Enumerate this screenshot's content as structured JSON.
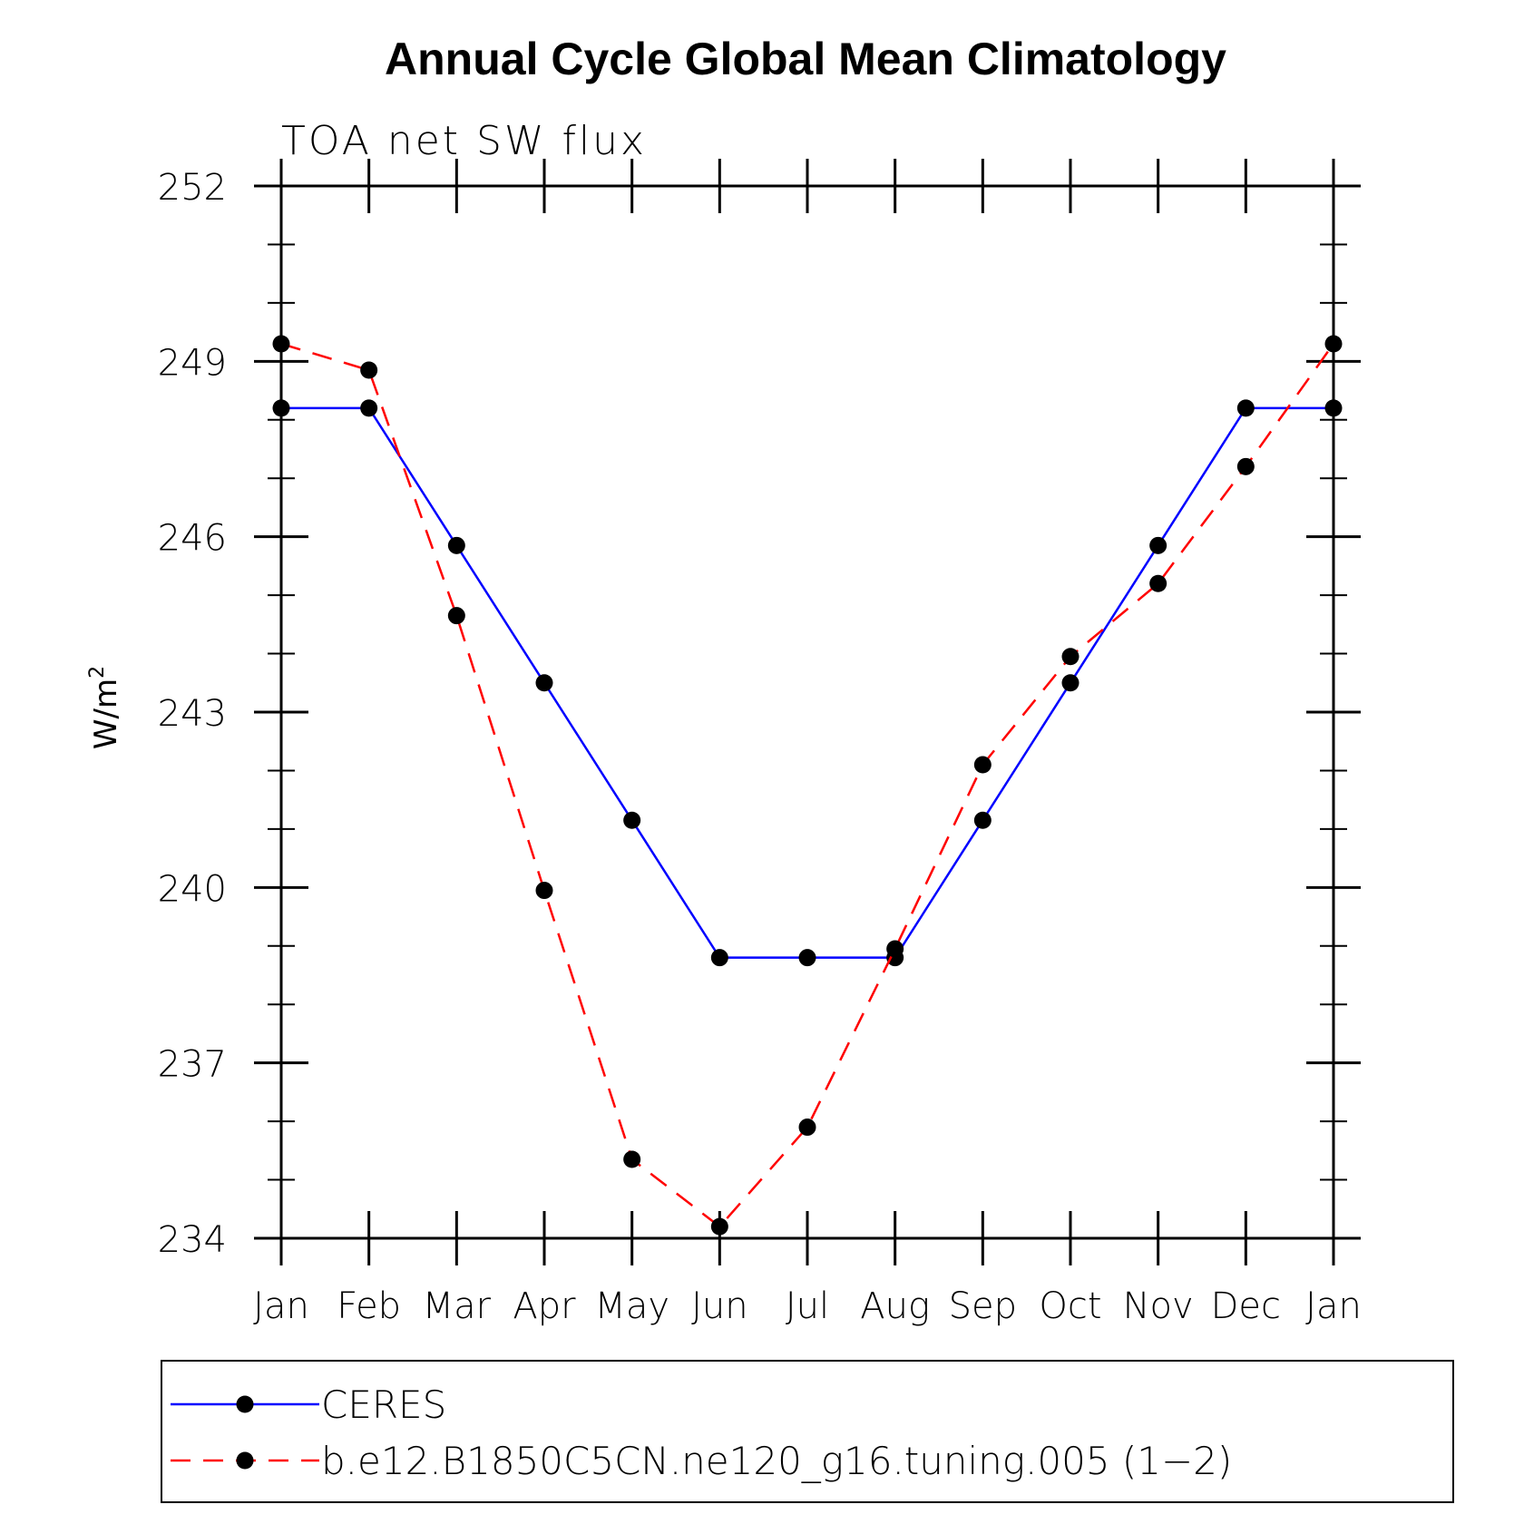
{
  "chart_data": {
    "type": "line",
    "title": "Annual Cycle Global Mean Climatology",
    "subtitle": "TOA net SW flux",
    "xlabel": "",
    "ylabel": "W/m",
    "ylabel_superscript": "2",
    "categories": [
      "Jan",
      "Feb",
      "Mar",
      "Apr",
      "May",
      "Jun",
      "Jul",
      "Aug",
      "Sep",
      "Oct",
      "Nov",
      "Dec",
      "Jan"
    ],
    "ylim": [
      234,
      252
    ],
    "yticks": [
      234,
      237,
      240,
      243,
      246,
      249,
      252
    ],
    "y_minor_step": 1,
    "grid": false,
    "legend_position": "bottom",
    "series": [
      {
        "name": "CERES",
        "color": "#0000ff",
        "dash": "solid",
        "marker": "filled-circle",
        "values": [
          248.2,
          248.2,
          245.85,
          243.5,
          241.15,
          238.8,
          238.8,
          238.8,
          241.15,
          243.5,
          245.85,
          248.2,
          248.2
        ]
      },
      {
        "name": "b.e12.B1850C5CN.ne120_g16.tuning.005 (1−2)",
        "color": "#ff0000",
        "dash": "dashed",
        "marker": "filled-circle",
        "values": [
          249.3,
          248.85,
          244.65,
          239.95,
          235.35,
          234.2,
          235.9,
          238.95,
          242.1,
          243.95,
          245.2,
          247.2,
          249.3
        ]
      }
    ]
  }
}
